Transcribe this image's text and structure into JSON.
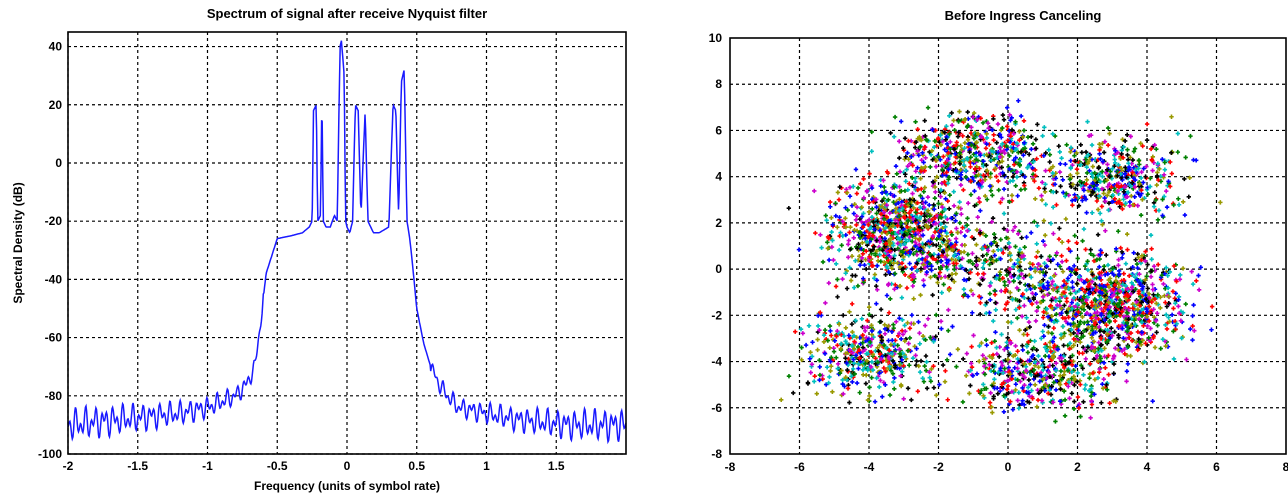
{
  "colors": {
    "spectrum_line": "#1a1aff",
    "scatter_palette": [
      "#0000ff",
      "#ff0000",
      "#008000",
      "#000000",
      "#cc00cc",
      "#00bfbf",
      "#999900"
    ]
  },
  "chart_data": [
    {
      "type": "line",
      "title": "Spectrum of signal after receive Nyquist filter",
      "xlabel": "Frequency (units of symbol rate)",
      "ylabel": "Spectral Density (dB)",
      "xlim": [
        -2,
        2
      ],
      "ylim": [
        -100,
        45
      ],
      "x_ticks": [
        -2,
        -1.5,
        -1,
        -0.5,
        0,
        0.5,
        1,
        1.5
      ],
      "x_tick_labels": [
        "-2",
        "-1.5",
        "-1",
        "-0.5",
        "0",
        "0.5",
        "1",
        "1.5"
      ],
      "y_ticks": [
        -100,
        -80,
        -60,
        -40,
        -20,
        0,
        20,
        40
      ],
      "y_tick_labels": [
        "-100",
        "-80",
        "-60",
        "-40",
        "-20",
        "0",
        "20",
        "40"
      ],
      "grid": true,
      "series": [
        {
          "color": "#1a1aff",
          "x": [
            -2.0,
            -1.6,
            -1.2,
            -1.0,
            -0.8,
            -0.72,
            -0.66,
            -0.62,
            -0.58,
            -0.5,
            -0.4,
            -0.32,
            -0.27,
            -0.25,
            -0.24,
            -0.22,
            -0.21,
            -0.19,
            -0.18,
            -0.17,
            -0.15,
            -0.12,
            -0.09,
            -0.07,
            -0.05,
            -0.04,
            -0.02,
            -0.01,
            0.0,
            0.02,
            0.04,
            0.06,
            0.08,
            0.1,
            0.13,
            0.15,
            0.17,
            0.19,
            0.23,
            0.3,
            0.33,
            0.35,
            0.37,
            0.39,
            0.41,
            0.43,
            0.45,
            0.47,
            0.5,
            0.55,
            0.6,
            0.66,
            0.72,
            0.8,
            1.0,
            1.2,
            1.6,
            2.0
          ],
          "y": [
            -90,
            -88,
            -86,
            -84,
            -80,
            -76,
            -70,
            -55,
            -38,
            -26,
            -25,
            -24,
            -22,
            -20,
            18,
            20,
            -20,
            -18,
            24,
            -20,
            -22,
            -22,
            -18,
            -20,
            40,
            42,
            30,
            -20,
            -22,
            -24,
            -20,
            20,
            18,
            -18,
            18,
            -20,
            -22,
            -24,
            -24,
            -22,
            20,
            18,
            -18,
            28,
            32,
            -20,
            -26,
            -35,
            -50,
            -62,
            -70,
            -76,
            -80,
            -84,
            -86,
            -88,
            -90,
            -90
          ]
        }
      ]
    },
    {
      "type": "scatter",
      "title": "Before Ingress Canceling",
      "xlim": [
        -8,
        8
      ],
      "ylim": [
        -8,
        10
      ],
      "x_ticks": [
        -8,
        -6,
        -4,
        -2,
        0,
        2,
        4,
        6,
        8
      ],
      "x_tick_labels": [
        "-8",
        "-6",
        "-4",
        "-2",
        "0",
        "2",
        "4",
        "6",
        "8"
      ],
      "y_ticks": [
        -8,
        -6,
        -4,
        -2,
        0,
        2,
        4,
        6,
        8,
        10
      ],
      "y_tick_labels": [
        "-8",
        "-6",
        "-4",
        "-2",
        "0",
        "2",
        "4",
        "6",
        "8",
        "10"
      ],
      "grid": true,
      "clusters": [
        {
          "center": [
            -3,
            1.5
          ],
          "spread": [
            1.5,
            1.6
          ],
          "count": 900
        },
        {
          "center": [
            3,
            -1.5
          ],
          "spread": [
            1.5,
            1.6
          ],
          "count": 900
        },
        {
          "center": [
            -1,
            5
          ],
          "spread": [
            1.6,
            1.3
          ],
          "count": 550
        },
        {
          "center": [
            3,
            4
          ],
          "spread": [
            1.5,
            1.3
          ],
          "count": 450
        },
        {
          "center": [
            -4,
            -3.5
          ],
          "spread": [
            1.4,
            1.3
          ],
          "count": 450
        },
        {
          "center": [
            1,
            -4.5
          ],
          "spread": [
            1.6,
            1.2
          ],
          "count": 450
        },
        {
          "center": [
            0,
            0
          ],
          "spread": [
            1.5,
            1.5
          ],
          "count": 300
        }
      ],
      "x_range_points": [
        -6.6,
        7.1
      ],
      "y_range_points": [
        -7.4,
        8.2
      ]
    }
  ]
}
